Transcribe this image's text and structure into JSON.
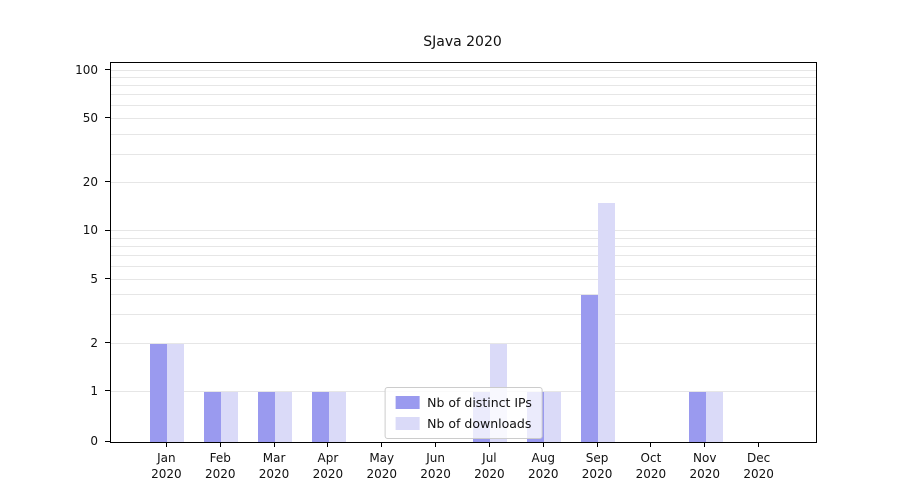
{
  "chart_data": {
    "type": "bar",
    "title": "SJava 2020",
    "categories": [
      "Jan 2020",
      "Feb 2020",
      "Mar 2020",
      "Apr 2020",
      "May 2020",
      "Jun 2020",
      "Jul 2020",
      "Aug 2020",
      "Sep 2020",
      "Oct 2020",
      "Nov 2020",
      "Dec 2020"
    ],
    "series": [
      {
        "name": "Nb of distinct IPs",
        "color": "#9a9aef",
        "values": [
          2,
          1,
          1,
          1,
          0,
          0,
          1,
          1,
          4,
          0,
          1,
          0
        ]
      },
      {
        "name": "Nb of downloads",
        "color": "#dadaf8",
        "values": [
          2,
          1,
          1,
          1,
          0,
          0,
          2,
          1,
          15,
          0,
          1,
          0
        ]
      }
    ],
    "y_ticks": [
      0,
      1,
      2,
      5,
      10,
      20,
      50,
      100
    ],
    "gridlines": [
      1,
      2,
      3,
      4,
      5,
      6,
      7,
      8,
      9,
      10,
      20,
      30,
      40,
      50,
      60,
      70,
      80,
      90,
      100
    ],
    "y_scale": "symlog",
    "ylim": [
      0,
      115
    ],
    "xlabel": "",
    "ylabel": "",
    "legend_position": "lower center",
    "grid": "horizontal"
  }
}
